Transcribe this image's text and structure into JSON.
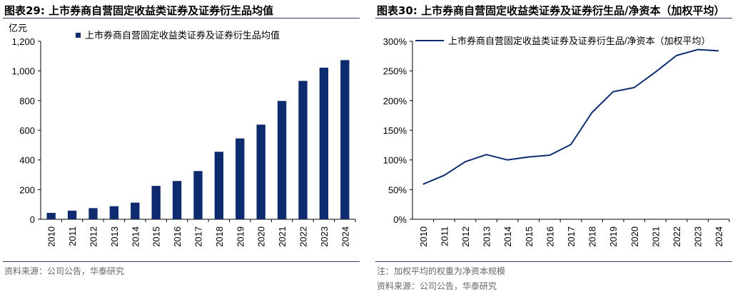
{
  "left": {
    "figure_title": "图表29:  上市券商自营固定收益类证券及证券衍生品均值",
    "source": "资料来源：公司公告，华泰研究"
  },
  "right": {
    "figure_title": "图表30:  上市券商自营固定收益类证券及证券衍生品/净资本（加权平均）",
    "note": "注：加权平均的权重为净资本规模",
    "source": "资料来源：公司公告，华泰研究"
  },
  "chart_data": [
    {
      "type": "bar",
      "title": "图表29:  上市券商自营固定收益类证券及证券衍生品均值",
      "ylabel": "亿元",
      "ylim": [
        0,
        1200
      ],
      "yticks": [
        0,
        200,
        400,
        600,
        800,
        1000,
        1200
      ],
      "ytick_labels": [
        "0",
        "200",
        "400",
        "600",
        "800",
        "1,000",
        "1,200"
      ],
      "categories": [
        "2010",
        "2011",
        "2012",
        "2013",
        "2014",
        "2015",
        "2016",
        "2017",
        "2018",
        "2019",
        "2020",
        "2021",
        "2022",
        "2023",
        "2024"
      ],
      "series": [
        {
          "name": "上市券商自营固定收益类证券及证券衍生品均值",
          "values": [
            43,
            58,
            75,
            88,
            112,
            225,
            258,
            325,
            455,
            545,
            638,
            798,
            933,
            1022,
            1073
          ],
          "color": "#0d2b6e"
        }
      ],
      "legend": "top-left",
      "grid": false
    },
    {
      "type": "line",
      "title": "图表30:  上市券商自营固定收益类证券及证券衍生品/净资本（加权平均）",
      "ylim": [
        0,
        300
      ],
      "yticks": [
        0,
        50,
        100,
        150,
        200,
        250,
        300
      ],
      "ytick_labels": [
        "0%",
        "50%",
        "100%",
        "150%",
        "200%",
        "250%",
        "300%"
      ],
      "categories": [
        "2010",
        "2011",
        "2012",
        "2013",
        "2014",
        "2015",
        "2016",
        "2017",
        "2018",
        "2019",
        "2020",
        "2021",
        "2022",
        "2023",
        "2024"
      ],
      "series": [
        {
          "name": "上市券商自营固定收益类证券及证券衍生品/净资本（加权平均）",
          "values": [
            59,
            74,
            97,
            109,
            100,
            105,
            108,
            126,
            180,
            215,
            222,
            248,
            276,
            286,
            284
          ],
          "color": "#0d2b6e"
        }
      ],
      "legend": "top-left",
      "grid": false
    }
  ]
}
